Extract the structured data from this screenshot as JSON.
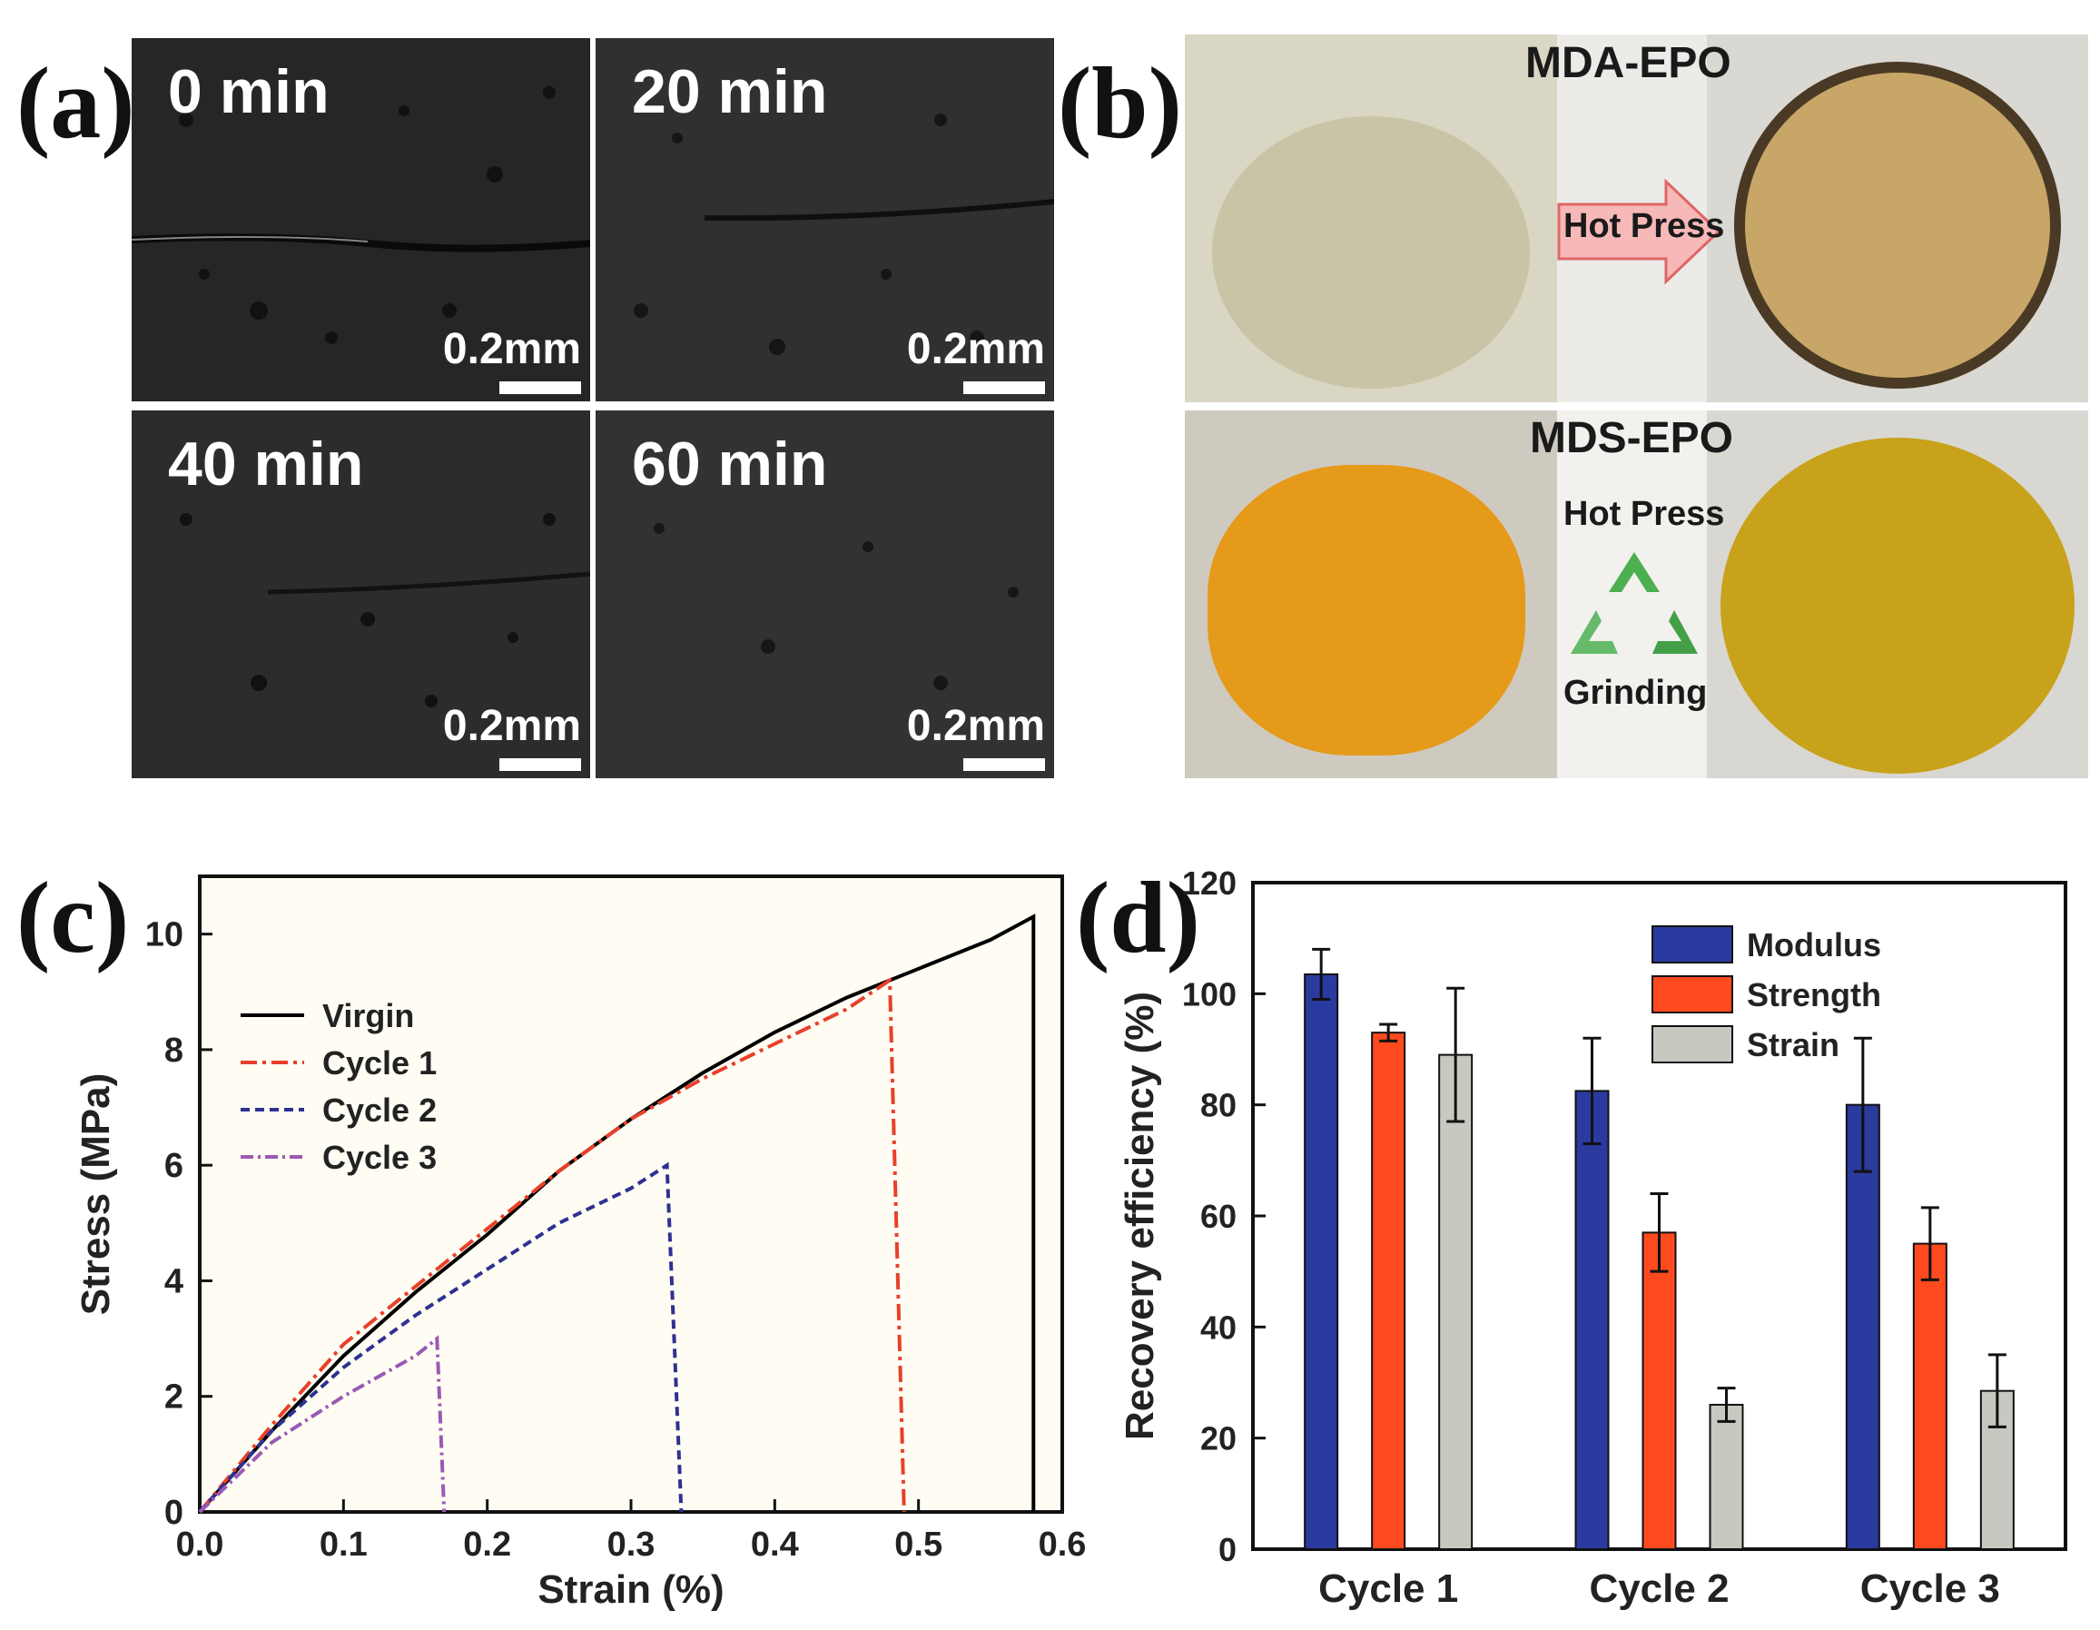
{
  "panels": {
    "a": {
      "label": "(a)",
      "frames": [
        {
          "time": "0 min",
          "scale": "0.2mm"
        },
        {
          "time": "20 min",
          "scale": "0.2mm"
        },
        {
          "time": "40 min",
          "scale": "0.2mm"
        },
        {
          "time": "60 min",
          "scale": "0.2mm"
        }
      ]
    },
    "b": {
      "label": "(b)",
      "top_label": "MDA-EPO",
      "bottom_label": "MDS-EPO",
      "arrow_text": "Hot Press",
      "recycle_top": "Hot Press",
      "recycle_bottom": "Grinding"
    },
    "c": {
      "label": "(c)"
    },
    "d": {
      "label": "(d)"
    }
  },
  "chart_data": [
    {
      "type": "line",
      "panel": "c",
      "xlabel": "Strain (%)",
      "ylabel": "Stress (MPa)",
      "xlim": [
        0.0,
        0.6
      ],
      "ylim": [
        0,
        11
      ],
      "xticks": [
        "0.0",
        "0.1",
        "0.2",
        "0.3",
        "0.4",
        "0.5",
        "0.6"
      ],
      "yticks": [
        "0",
        "2",
        "4",
        "6",
        "8",
        "10"
      ],
      "legend": "upper-left",
      "series": [
        {
          "name": "Virgin",
          "color": "#000000",
          "dash": "solid",
          "x": [
            0,
            0.05,
            0.1,
            0.15,
            0.2,
            0.25,
            0.3,
            0.35,
            0.4,
            0.45,
            0.5,
            0.55,
            0.58,
            0.58
          ],
          "y": [
            0,
            1.4,
            2.7,
            3.8,
            4.8,
            5.9,
            6.8,
            7.6,
            8.3,
            8.9,
            9.4,
            9.9,
            10.3,
            0
          ]
        },
        {
          "name": "Cycle 1",
          "color": "#e8402a",
          "dash": "18 6 4 6",
          "x": [
            0,
            0.05,
            0.1,
            0.15,
            0.2,
            0.25,
            0.3,
            0.35,
            0.4,
            0.45,
            0.48,
            0.49
          ],
          "y": [
            0,
            1.5,
            2.9,
            3.9,
            4.9,
            5.9,
            6.8,
            7.5,
            8.1,
            8.7,
            9.2,
            0
          ]
        },
        {
          "name": "Cycle 2",
          "color": "#2e3192",
          "dash": "10 6",
          "x": [
            0,
            0.05,
            0.1,
            0.15,
            0.2,
            0.25,
            0.3,
            0.325,
            0.335
          ],
          "y": [
            0,
            1.4,
            2.5,
            3.4,
            4.2,
            5.0,
            5.6,
            6.0,
            0
          ]
        },
        {
          "name": "Cycle 3",
          "color": "#9b59b6",
          "dash": "14 5 3 5",
          "x": [
            0,
            0.05,
            0.1,
            0.15,
            0.165,
            0.17
          ],
          "y": [
            0,
            1.2,
            2.0,
            2.7,
            3.0,
            0
          ]
        }
      ]
    },
    {
      "type": "bar",
      "panel": "d",
      "ylabel": "Recovery efficiency (%)",
      "categories": [
        "Cycle 1",
        "Cycle 2",
        "Cycle 3"
      ],
      "ylim": [
        0,
        120
      ],
      "yticks": [
        "0",
        "20",
        "40",
        "60",
        "80",
        "100",
        "120"
      ],
      "legend": "top-right",
      "series": [
        {
          "name": "Modulus",
          "color": "#2b3a9e",
          "values": [
            103.5,
            82.5,
            80
          ],
          "errors": [
            4.5,
            9.5,
            12
          ]
        },
        {
          "name": "Strength",
          "color": "#ff4a1f",
          "values": [
            93,
            57,
            55
          ],
          "errors": [
            1.5,
            7,
            6.5
          ]
        },
        {
          "name": "Strain",
          "color": "#c8c8c0",
          "values": [
            89,
            26,
            28.5
          ],
          "errors": [
            12,
            3,
            6.5
          ]
        }
      ]
    }
  ]
}
